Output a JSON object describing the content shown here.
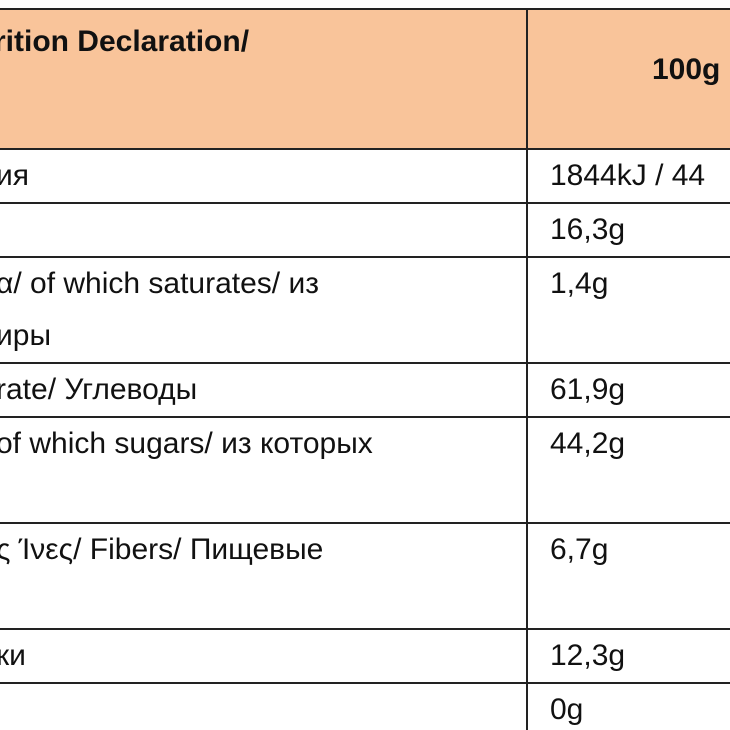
{
  "header": {
    "label": "trition Declaration/",
    "value": "100g"
  },
  "rows": [
    {
      "label_lines": [
        "ия"
      ],
      "value": "1844kJ / 44"
    },
    {
      "label_lines": [
        ""
      ],
      "value": "16,3g"
    },
    {
      "label_lines": [
        "α/ of which saturates/ из",
        "иры"
      ],
      "value": "1,4g"
    },
    {
      "label_lines": [
        "rate/ Углеводы"
      ],
      "value": "61,9g"
    },
    {
      "label_lines": [
        "of which sugars/ из которых",
        ""
      ],
      "value": "44,2g"
    },
    {
      "label_lines": [
        "ς Ίνες/ Fibers/ Пищевые",
        ""
      ],
      "value": "6,7g"
    },
    {
      "label_lines": [
        "ки"
      ],
      "value": "12,3g"
    },
    {
      "label_lines": [
        ""
      ],
      "value": "0g"
    }
  ]
}
